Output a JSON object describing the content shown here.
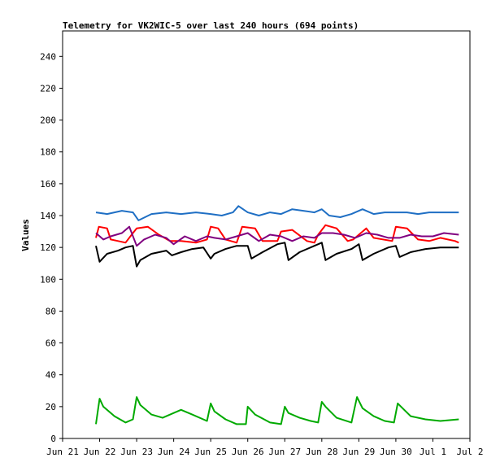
{
  "chart_data": {
    "type": "line",
    "title": "Telemetry for VK2WIC-5 over last 240 hours (694 points)",
    "xlabel": "",
    "ylabel": "Values",
    "ylim": [
      0,
      256
    ],
    "yticks": [
      0,
      20,
      40,
      60,
      80,
      100,
      120,
      140,
      160,
      180,
      200,
      220,
      240
    ],
    "xlim": [
      0,
      11
    ],
    "xticks": [
      {
        "x": 0,
        "label": "Jun 21"
      },
      {
        "x": 1,
        "label": "Jun 22"
      },
      {
        "x": 2,
        "label": "Jun 23"
      },
      {
        "x": 3,
        "label": "Jun 24"
      },
      {
        "x": 4,
        "label": "Jun 25"
      },
      {
        "x": 5,
        "label": "Jun 26"
      },
      {
        "x": 6,
        "label": "Jun 27"
      },
      {
        "x": 7,
        "label": "Jun 28"
      },
      {
        "x": 8,
        "label": "Jun 29"
      },
      {
        "x": 9,
        "label": "Jun 30"
      },
      {
        "x": 10,
        "label": "Jul 1"
      },
      {
        "x": 11,
        "label": "Jul 2"
      }
    ],
    "grid": false,
    "legend": "none",
    "series": [
      {
        "color": "#1f6fc4",
        "x": [
          0.9,
          1.2,
          1.6,
          1.9,
          2.05,
          2.4,
          2.8,
          3.2,
          3.6,
          4.0,
          4.3,
          4.6,
          4.75,
          5.0,
          5.3,
          5.6,
          5.9,
          6.2,
          6.5,
          6.8,
          7.0,
          7.2,
          7.5,
          7.8,
          8.1,
          8.4,
          8.7,
          9.0,
          9.3,
          9.6,
          9.9,
          10.2,
          10.5,
          10.7
        ],
        "y": [
          142,
          141,
          143,
          142,
          137,
          141,
          142,
          141,
          142,
          141,
          140,
          142,
          146,
          142,
          140,
          142,
          141,
          144,
          143,
          142,
          144,
          140,
          139,
          141,
          144,
          141,
          142,
          142,
          142,
          141,
          142,
          142,
          142,
          142
        ]
      },
      {
        "color": "#ff0000",
        "x": [
          0.9,
          0.98,
          1.2,
          1.3,
          1.5,
          1.7,
          1.9,
          2.0,
          2.3,
          2.6,
          2.9,
          3.2,
          3.6,
          3.9,
          4.0,
          4.2,
          4.4,
          4.7,
          4.85,
          5.2,
          5.4,
          5.8,
          5.9,
          6.2,
          6.6,
          6.8,
          6.9,
          7.1,
          7.4,
          7.7,
          7.85,
          8.2,
          8.4,
          8.9,
          9.0,
          9.3,
          9.6,
          9.9,
          10.2,
          10.6,
          10.7
        ],
        "y": [
          126,
          133,
          132,
          125,
          124,
          123,
          129,
          132,
          133,
          128,
          124,
          124,
          123,
          125,
          133,
          132,
          125,
          123,
          133,
          132,
          124,
          124,
          130,
          131,
          124,
          123,
          128,
          134,
          132,
          124,
          125,
          132,
          126,
          124,
          133,
          132,
          125,
          124,
          126,
          124,
          123
        ]
      },
      {
        "color": "#800080",
        "x": [
          0.9,
          1.1,
          1.3,
          1.6,
          1.8,
          2.0,
          2.2,
          2.5,
          2.8,
          3.0,
          3.3,
          3.6,
          3.9,
          4.1,
          4.4,
          4.7,
          5.0,
          5.3,
          5.6,
          5.9,
          6.2,
          6.5,
          6.8,
          7.0,
          7.3,
          7.6,
          7.9,
          8.2,
          8.5,
          8.8,
          9.1,
          9.4,
          9.7,
          10.0,
          10.3,
          10.7
        ],
        "y": [
          129,
          125,
          127,
          129,
          133,
          121,
          125,
          128,
          126,
          122,
          127,
          124,
          127,
          126,
          125,
          127,
          129,
          124,
          128,
          127,
          124,
          127,
          126,
          129,
          129,
          128,
          126,
          129,
          128,
          126,
          126,
          128,
          127,
          127,
          129,
          128
        ]
      },
      {
        "color": "#000000",
        "x": [
          0.9,
          1.0,
          1.2,
          1.5,
          1.7,
          1.9,
          2.0,
          2.1,
          2.4,
          2.8,
          2.95,
          3.2,
          3.5,
          3.8,
          4.0,
          4.1,
          4.4,
          4.7,
          5.0,
          5.1,
          5.4,
          5.8,
          6.0,
          6.1,
          6.4,
          6.8,
          7.0,
          7.1,
          7.4,
          7.8,
          8.0,
          8.1,
          8.4,
          8.8,
          9.0,
          9.1,
          9.4,
          9.8,
          10.2,
          10.7
        ],
        "y": [
          121,
          111,
          116,
          118,
          120,
          121,
          108,
          112,
          116,
          118,
          115,
          117,
          119,
          120,
          113,
          116,
          119,
          121,
          121,
          113,
          117,
          122,
          123,
          112,
          117,
          121,
          123,
          112,
          116,
          119,
          122,
          112,
          116,
          120,
          121,
          114,
          117,
          119,
          120,
          120
        ]
      },
      {
        "color": "#00aa00",
        "x": [
          0.9,
          1.0,
          1.1,
          1.4,
          1.7,
          1.9,
          2.0,
          2.1,
          2.4,
          2.7,
          3.0,
          3.2,
          3.5,
          3.9,
          4.0,
          4.1,
          4.4,
          4.7,
          4.95,
          5.0,
          5.2,
          5.6,
          5.9,
          6.0,
          6.1,
          6.4,
          6.7,
          6.9,
          7.0,
          7.1,
          7.4,
          7.8,
          7.95,
          8.1,
          8.4,
          8.7,
          8.95,
          9.05,
          9.4,
          9.8,
          10.2,
          10.7
        ],
        "y": [
          9,
          25,
          20,
          14,
          10,
          12,
          26,
          21,
          15,
          13,
          16,
          18,
          15,
          11,
          22,
          17,
          12,
          9,
          9,
          20,
          15,
          10,
          9,
          20,
          16,
          13,
          11,
          10,
          23,
          20,
          13,
          10,
          26,
          19,
          14,
          11,
          10,
          22,
          14,
          12,
          11,
          12
        ]
      }
    ]
  }
}
